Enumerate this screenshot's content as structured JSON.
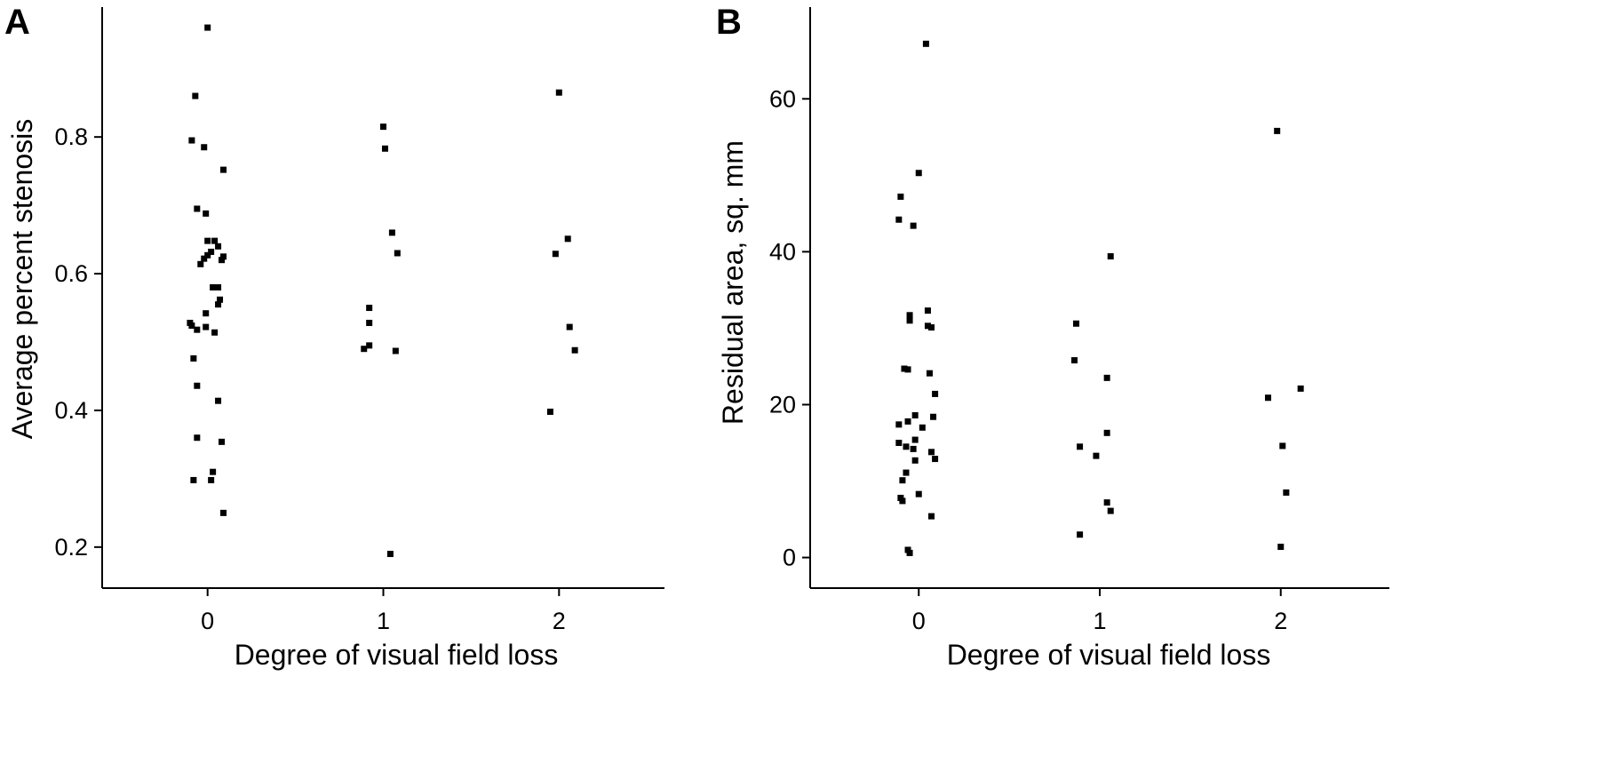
{
  "chart_data": [
    {
      "panel_label": "A",
      "type": "scatter",
      "xlabel": "Degree of visual field loss",
      "ylabel": "Average percent stenosis",
      "x_ticks": [
        "0",
        "1",
        "2"
      ],
      "y_ticks": [
        "0.2",
        "0.4",
        "0.6",
        "0.8"
      ],
      "xlim": [
        -0.6,
        2.6
      ],
      "ylim": [
        0.14,
        0.99
      ],
      "grid": false,
      "series": [
        {
          "marker": "square",
          "color": "#000000",
          "points": [
            {
              "x": 0.0,
              "y": 0.96
            },
            {
              "x": -0.07,
              "y": 0.86
            },
            {
              "x": -0.09,
              "y": 0.795
            },
            {
              "x": -0.02,
              "y": 0.785
            },
            {
              "x": 0.09,
              "y": 0.752
            },
            {
              "x": -0.06,
              "y": 0.695
            },
            {
              "x": -0.01,
              "y": 0.688
            },
            {
              "x": 0.0,
              "y": 0.648
            },
            {
              "x": 0.04,
              "y": 0.648
            },
            {
              "x": 0.06,
              "y": 0.64
            },
            {
              "x": 0.02,
              "y": 0.632
            },
            {
              "x": 0.0,
              "y": 0.627
            },
            {
              "x": 0.09,
              "y": 0.625
            },
            {
              "x": -0.02,
              "y": 0.622
            },
            {
              "x": 0.08,
              "y": 0.62
            },
            {
              "x": -0.04,
              "y": 0.614
            },
            {
              "x": 0.03,
              "y": 0.58
            },
            {
              "x": 0.06,
              "y": 0.58
            },
            {
              "x": 0.07,
              "y": 0.562
            },
            {
              "x": 0.06,
              "y": 0.555
            },
            {
              "x": -0.01,
              "y": 0.542
            },
            {
              "x": -0.1,
              "y": 0.528
            },
            {
              "x": -0.09,
              "y": 0.524
            },
            {
              "x": -0.01,
              "y": 0.522
            },
            {
              "x": -0.06,
              "y": 0.518
            },
            {
              "x": 0.04,
              "y": 0.514
            },
            {
              "x": -0.08,
              "y": 0.476
            },
            {
              "x": -0.06,
              "y": 0.436
            },
            {
              "x": 0.06,
              "y": 0.414
            },
            {
              "x": -0.06,
              "y": 0.36
            },
            {
              "x": 0.08,
              "y": 0.354
            },
            {
              "x": 0.03,
              "y": 0.31
            },
            {
              "x": 0.02,
              "y": 0.298
            },
            {
              "x": -0.08,
              "y": 0.298
            },
            {
              "x": 0.09,
              "y": 0.25
            },
            {
              "x": 1.0,
              "y": 0.815
            },
            {
              "x": 1.01,
              "y": 0.783
            },
            {
              "x": 1.05,
              "y": 0.66
            },
            {
              "x": 1.08,
              "y": 0.63
            },
            {
              "x": 0.92,
              "y": 0.55
            },
            {
              "x": 0.92,
              "y": 0.528
            },
            {
              "x": 0.92,
              "y": 0.495
            },
            {
              "x": 0.89,
              "y": 0.49
            },
            {
              "x": 1.07,
              "y": 0.487
            },
            {
              "x": 1.04,
              "y": 0.19
            },
            {
              "x": 2.0,
              "y": 0.865
            },
            {
              "x": 2.05,
              "y": 0.651
            },
            {
              "x": 1.98,
              "y": 0.629
            },
            {
              "x": 2.06,
              "y": 0.522
            },
            {
              "x": 2.09,
              "y": 0.488
            },
            {
              "x": 1.95,
              "y": 0.398
            }
          ]
        }
      ]
    },
    {
      "panel_label": "B",
      "type": "scatter",
      "xlabel": "Degree of visual field loss",
      "ylabel": "Residual area, sq. mm",
      "x_ticks": [
        "0",
        "1",
        "2"
      ],
      "y_ticks": [
        "0",
        "20",
        "40",
        "60"
      ],
      "xlim": [
        -0.6,
        2.6
      ],
      "ylim": [
        -4,
        72
      ],
      "grid": false,
      "series": [
        {
          "marker": "square",
          "color": "#000000",
          "points": [
            {
              "x": 0.04,
              "y": 67.2
            },
            {
              "x": 0.0,
              "y": 50.3
            },
            {
              "x": -0.1,
              "y": 47.2
            },
            {
              "x": -0.11,
              "y": 44.2
            },
            {
              "x": -0.03,
              "y": 43.4
            },
            {
              "x": 0.05,
              "y": 32.3
            },
            {
              "x": -0.05,
              "y": 31.7
            },
            {
              "x": -0.05,
              "y": 31.0
            },
            {
              "x": 0.05,
              "y": 30.3
            },
            {
              "x": 0.07,
              "y": 30.1
            },
            {
              "x": -0.08,
              "y": 24.7
            },
            {
              "x": -0.06,
              "y": 24.6
            },
            {
              "x": 0.06,
              "y": 24.1
            },
            {
              "x": 0.09,
              "y": 21.4
            },
            {
              "x": -0.02,
              "y": 18.6
            },
            {
              "x": 0.08,
              "y": 18.4
            },
            {
              "x": -0.06,
              "y": 17.8
            },
            {
              "x": -0.11,
              "y": 17.4
            },
            {
              "x": 0.02,
              "y": 17.0
            },
            {
              "x": -0.02,
              "y": 15.4
            },
            {
              "x": -0.11,
              "y": 15.0
            },
            {
              "x": -0.07,
              "y": 14.5
            },
            {
              "x": -0.03,
              "y": 14.2
            },
            {
              "x": 0.07,
              "y": 13.8
            },
            {
              "x": 0.09,
              "y": 12.9
            },
            {
              "x": -0.02,
              "y": 12.7
            },
            {
              "x": -0.07,
              "y": 11.1
            },
            {
              "x": -0.09,
              "y": 10.1
            },
            {
              "x": 0.0,
              "y": 8.3
            },
            {
              "x": -0.1,
              "y": 7.8
            },
            {
              "x": -0.09,
              "y": 7.4
            },
            {
              "x": 0.07,
              "y": 5.4
            },
            {
              "x": -0.06,
              "y": 1.0
            },
            {
              "x": -0.05,
              "y": 0.6
            },
            {
              "x": 1.06,
              "y": 39.4
            },
            {
              "x": 0.87,
              "y": 30.6
            },
            {
              "x": 0.86,
              "y": 25.8
            },
            {
              "x": 1.04,
              "y": 23.5
            },
            {
              "x": 1.04,
              "y": 16.3
            },
            {
              "x": 0.89,
              "y": 14.5
            },
            {
              "x": 0.98,
              "y": 13.3
            },
            {
              "x": 1.04,
              "y": 7.2
            },
            {
              "x": 1.06,
              "y": 6.1
            },
            {
              "x": 0.89,
              "y": 3.0
            },
            {
              "x": 1.98,
              "y": 55.8
            },
            {
              "x": 2.11,
              "y": 22.1
            },
            {
              "x": 1.93,
              "y": 20.9
            },
            {
              "x": 2.01,
              "y": 14.6
            },
            {
              "x": 2.03,
              "y": 8.5
            },
            {
              "x": 2.0,
              "y": 1.4
            }
          ]
        }
      ]
    }
  ]
}
